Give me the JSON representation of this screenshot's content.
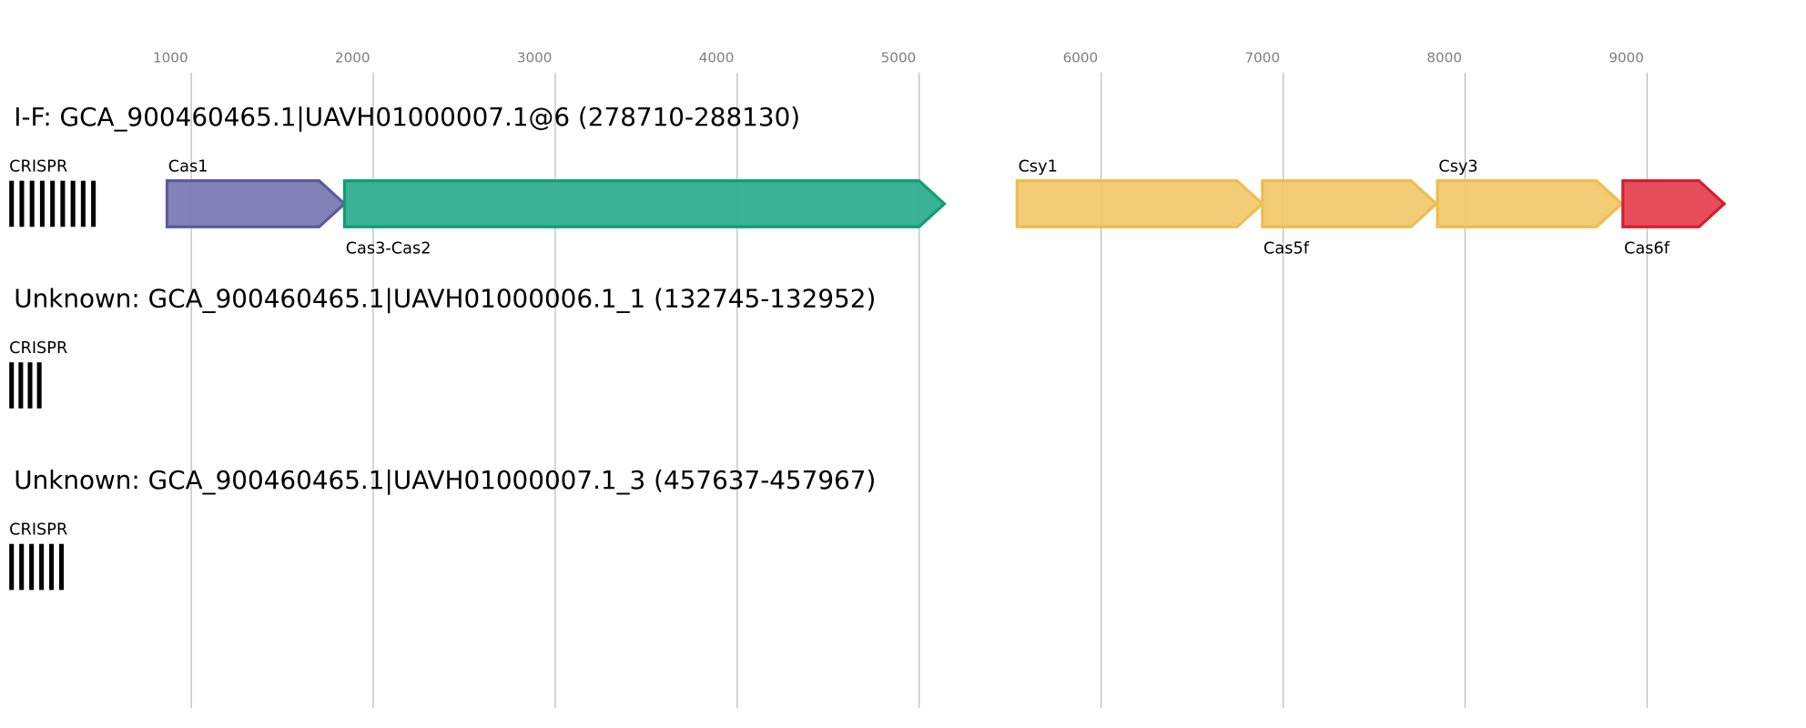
{
  "axis": {
    "xlim": [
      0,
      9873
    ],
    "ticks": [
      1000,
      2000,
      3000,
      4000,
      5000,
      6000,
      7000,
      8000,
      9000
    ]
  },
  "loci": [
    {
      "title": "I-F: GCA_900460465.1|UAVH01000007.1@6 (278710-288130)",
      "crispr": {
        "label": "CRISPR",
        "start": 0,
        "end": 506,
        "repeats": 9
      },
      "genes": [
        {
          "name": "Cas1",
          "start": 867,
          "end": 1842,
          "color": "#7b7bb5",
          "stroke": "#5a5a9e"
        },
        {
          "name": "Cas3-Cas2",
          "start": 1842,
          "end": 5139,
          "color": "#2fae8f",
          "stroke": "#139c77"
        },
        {
          "name": "Csy1",
          "start": 5538,
          "end": 6886,
          "color": "#f2c96f",
          "stroke": "#edbe4f"
        },
        {
          "name": "Cas5f",
          "start": 6886,
          "end": 7842,
          "color": "#f2c96f",
          "stroke": "#edbe4f"
        },
        {
          "name": "Csy3",
          "start": 7848,
          "end": 8861,
          "color": "#f2c96f",
          "stroke": "#edbe4f"
        },
        {
          "name": "Cas6f",
          "start": 8867,
          "end": 9424,
          "color": "#e54553",
          "stroke": "#d71e2e"
        }
      ]
    },
    {
      "title": "Unknown: GCA_900460465.1|UAVH01000006.1_1 (132745-132952)",
      "crispr": {
        "label": "CRISPR",
        "start": 0,
        "end": 203,
        "repeats": 4
      },
      "genes": []
    },
    {
      "title": "Unknown: GCA_900460465.1|UAVH01000007.1_3 (457637-457967)",
      "crispr": {
        "label": "CRISPR",
        "start": 0,
        "end": 329,
        "repeats": 6
      },
      "genes": []
    }
  ]
}
